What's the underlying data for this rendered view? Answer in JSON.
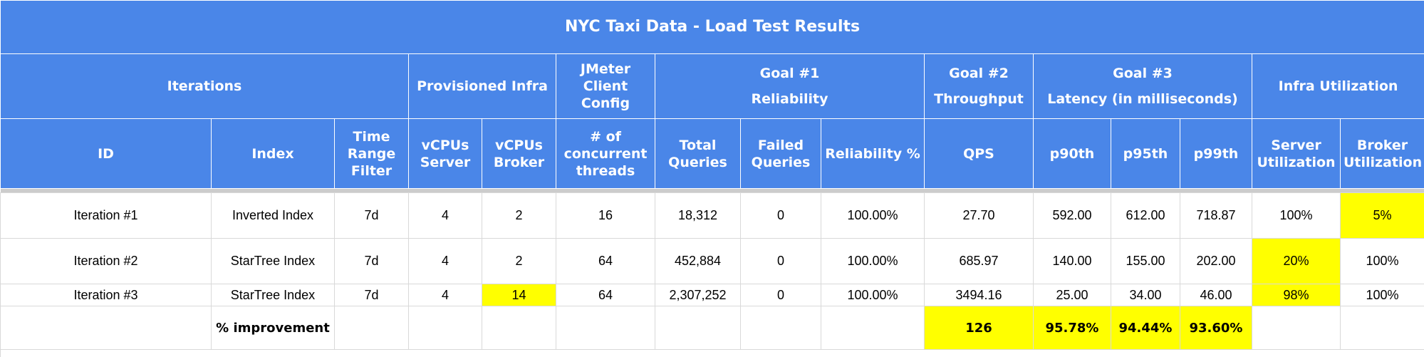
{
  "title": "NYC Taxi Data - Load Test Results",
  "groups": {
    "iterations": "Iterations",
    "provisioned_infra": "Provisioned Infra",
    "jmeter_client_config": "JMeter Client Config",
    "goal1_title": "Goal #1",
    "goal1_sub": "Reliability",
    "goal2_title": "Goal #2",
    "goal2_sub": "Throughput",
    "goal3_title": "Goal #3",
    "goal3_sub": "Latency (in milliseconds)",
    "infra_utilization": "Infra Utilization"
  },
  "columns": [
    "ID",
    "Index",
    "Time Range Filter",
    "vCPUs Server",
    "vCPUs Broker",
    "# of concurrent threads",
    "Total Queries",
    "Failed Queries",
    "Reliability %",
    "QPS",
    "p90th",
    "p95th",
    "p99th",
    "Server Utilization",
    "Broker Utilization"
  ],
  "rows": [
    [
      "Iteration #1",
      "Inverted Index",
      "7d",
      "4",
      "2",
      "16",
      "18,312",
      "0",
      "100.00%",
      "27.70",
      "592.00",
      "612.00",
      "718.87",
      "100%",
      "5%"
    ],
    [
      "Iteration #2",
      "StarTree Index",
      "7d",
      "4",
      "2",
      "64",
      "452,884",
      "0",
      "100.00%",
      "685.97",
      "140.00",
      "155.00",
      "202.00",
      "20%",
      "100%"
    ],
    [
      "Iteration #3",
      "StarTree Index",
      "7d",
      "4",
      "14",
      "64",
      "2,307,252",
      "0",
      "100.00%",
      "3494.16",
      "25.00",
      "34.00",
      "46.00",
      "98%",
      "100%"
    ]
  ],
  "improvement": {
    "label": "% improvement",
    "qps": "126",
    "p90th": "95.78%",
    "p95th": "94.44%",
    "p99th": "93.60%"
  },
  "colors": {
    "header_bg": "#4a86e8",
    "header_text": "#ffffff",
    "highlight": "#ffff00"
  }
}
